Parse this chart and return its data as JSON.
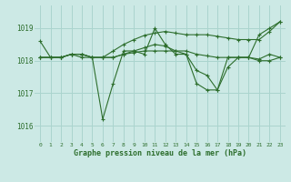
{
  "title": "Graphe pression niveau de la mer (hPa)",
  "background_color": "#cce9e5",
  "grid_color": "#aad4ce",
  "line_color": "#2d6e2d",
  "xlim": [
    -0.5,
    23.5
  ],
  "ylim": [
    1015.5,
    1019.7
  ],
  "yticks": [
    1016,
    1017,
    1018,
    1019
  ],
  "xticks": [
    0,
    1,
    2,
    3,
    4,
    5,
    6,
    7,
    8,
    9,
    10,
    11,
    12,
    13,
    14,
    15,
    16,
    17,
    18,
    19,
    20,
    21,
    22,
    23
  ],
  "series": [
    [
      1018.6,
      1018.1,
      1018.1,
      1018.2,
      1018.1,
      1018.1,
      1016.2,
      1017.3,
      1018.3,
      1018.3,
      1018.2,
      1019.0,
      1018.5,
      1018.2,
      1018.2,
      1017.3,
      1017.1,
      1017.1,
      1018.1,
      1018.1,
      1018.1,
      1018.8,
      1019.0,
      1019.2
    ],
    [
      1018.1,
      1018.1,
      1018.1,
      1018.2,
      1018.2,
      1018.1,
      1018.1,
      1018.3,
      1018.5,
      1018.65,
      1018.78,
      1018.85,
      1018.9,
      1018.85,
      1018.8,
      1018.8,
      1018.8,
      1018.75,
      1018.7,
      1018.65,
      1018.65,
      1018.65,
      1018.9,
      1019.2
    ],
    [
      1018.1,
      1018.1,
      1018.1,
      1018.2,
      1018.2,
      1018.1,
      1018.1,
      1018.1,
      1018.2,
      1018.25,
      1018.3,
      1018.3,
      1018.3,
      1018.3,
      1018.3,
      1018.2,
      1018.15,
      1018.1,
      1018.1,
      1018.1,
      1018.1,
      1018.05,
      1018.2,
      1018.1
    ],
    [
      1018.1,
      1018.1,
      1018.1,
      1018.2,
      1018.2,
      1018.1,
      1018.1,
      1018.1,
      1018.2,
      1018.3,
      1018.4,
      1018.5,
      1018.45,
      1018.3,
      1018.2,
      1017.7,
      1017.55,
      1017.1,
      1017.8,
      1018.1,
      1018.1,
      1018.0,
      1018.0,
      1018.1
    ]
  ]
}
